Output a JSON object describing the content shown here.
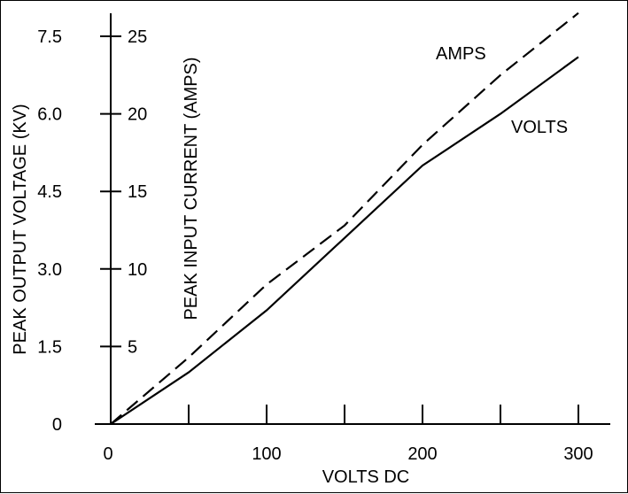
{
  "chart_data": {
    "type": "line",
    "title": "",
    "xlabel": "VOLTS DC",
    "ylabel_left": "PEAK OUTPUT VOLTAGE (KV)",
    "ylabel_right": "PEAK INPUT CURRENT (AMPS)",
    "x_ticks": [
      0,
      50,
      100,
      150,
      200,
      250,
      300
    ],
    "x_tick_labels": [
      {
        "x": 0,
        "label": "0"
      },
      {
        "x": 100,
        "label": "100"
      },
      {
        "x": 200,
        "label": "200"
      },
      {
        "x": 300,
        "label": "300"
      }
    ],
    "xlim": [
      0,
      320
    ],
    "y_left_ticks": [
      {
        "v": 0,
        "label": "0"
      },
      {
        "v": 1.5,
        "label": "1.5"
      },
      {
        "v": 3.0,
        "label": "3.0"
      },
      {
        "v": 4.5,
        "label": "4.5"
      },
      {
        "v": 6.0,
        "label": "6.0"
      },
      {
        "v": 7.5,
        "label": "7.5"
      }
    ],
    "y_left_lim": [
      0,
      7.5
    ],
    "y_right_ticks": [
      {
        "v": 5,
        "label": "5"
      },
      {
        "v": 10,
        "label": "10"
      },
      {
        "v": 15,
        "label": "15"
      },
      {
        "v": 20,
        "label": "20"
      },
      {
        "v": 25,
        "label": "25"
      }
    ],
    "y_right_lim": [
      0,
      25
    ],
    "grid": false,
    "series": [
      {
        "name": "VOLTS",
        "axis": "left",
        "style": "solid",
        "x": [
          0,
          50,
          100,
          150,
          200,
          250,
          300
        ],
        "values": [
          0,
          1.0,
          2.2,
          3.6,
          5.0,
          6.0,
          7.1
        ]
      },
      {
        "name": "AMPS",
        "axis": "right",
        "style": "dashed",
        "x": [
          0,
          50,
          100,
          150,
          200,
          250,
          300
        ],
        "values": [
          0,
          4.3,
          9.0,
          12.8,
          18.0,
          22.5,
          26.5
        ]
      }
    ]
  }
}
